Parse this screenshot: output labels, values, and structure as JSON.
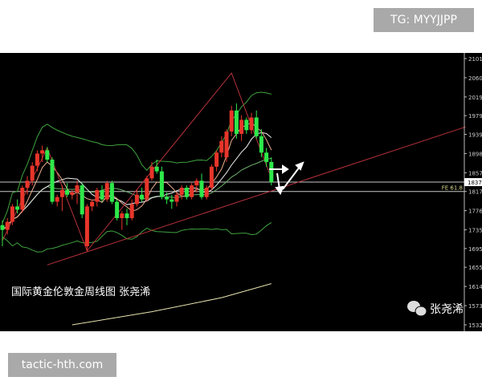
{
  "badges": {
    "tg": "TG: MYYJJPP",
    "site": "tactic-hth.com"
  },
  "chart_data": {
    "type": "candlestick",
    "title": "国际黄金伦敦金周线图 张尧浠",
    "watermark": "张尧浠",
    "watermark_icon": "wechat-icon",
    "ylim": [
      1532,
      2101
    ],
    "y_ticks": [
      "2101",
      "2060",
      "2019",
      "1979",
      "1939",
      "1898",
      "1857",
      "1817",
      "1776",
      "1735",
      "1695",
      "1655",
      "1614",
      "1573",
      "1532"
    ],
    "current_price_label": "1837",
    "level_label": "FE 61.8",
    "levels": [
      1837,
      1817
    ],
    "colors": {
      "up": "#e8352a",
      "down": "#2ee84a",
      "band": "#3fa33f",
      "trend": "#b8323a",
      "ma_long": "#e8e4b0",
      "level": "#c8c8c8",
      "level_label": "#d8d890"
    },
    "candles_ohlc": [
      [
        1745,
        1755,
        1700,
        1735
      ],
      [
        1735,
        1760,
        1725,
        1752
      ],
      [
        1752,
        1790,
        1745,
        1785
      ],
      [
        1785,
        1800,
        1770,
        1778
      ],
      [
        1778,
        1830,
        1772,
        1825
      ],
      [
        1825,
        1850,
        1810,
        1840
      ],
      [
        1840,
        1880,
        1830,
        1872
      ],
      [
        1872,
        1905,
        1860,
        1898
      ],
      [
        1898,
        1915,
        1880,
        1905
      ],
      [
        1905,
        1912,
        1880,
        1885
      ],
      [
        1885,
        1890,
        1790,
        1795
      ],
      [
        1795,
        1810,
        1785,
        1805
      ],
      [
        1805,
        1830,
        1775,
        1820
      ],
      [
        1820,
        1835,
        1805,
        1810
      ],
      [
        1810,
        1820,
        1800,
        1815
      ],
      [
        1815,
        1840,
        1790,
        1830
      ],
      [
        1830,
        1835,
        1760,
        1768
      ],
      [
        1700,
        1790,
        1690,
        1785
      ],
      [
        1785,
        1800,
        1775,
        1795
      ],
      [
        1795,
        1825,
        1785,
        1820
      ],
      [
        1820,
        1830,
        1795,
        1800
      ],
      [
        1800,
        1840,
        1795,
        1835
      ],
      [
        1835,
        1840,
        1790,
        1795
      ],
      [
        1795,
        1800,
        1755,
        1760
      ],
      [
        1760,
        1775,
        1735,
        1770
      ],
      [
        1770,
        1780,
        1745,
        1760
      ],
      [
        1760,
        1800,
        1755,
        1790
      ],
      [
        1790,
        1820,
        1785,
        1810
      ],
      [
        1810,
        1825,
        1795,
        1800
      ],
      [
        1800,
        1850,
        1795,
        1845
      ],
      [
        1845,
        1880,
        1840,
        1870
      ],
      [
        1870,
        1885,
        1855,
        1860
      ],
      [
        1860,
        1870,
        1800,
        1805
      ],
      [
        1805,
        1815,
        1790,
        1800
      ],
      [
        1800,
        1810,
        1780,
        1795
      ],
      [
        1795,
        1815,
        1785,
        1810
      ],
      [
        1810,
        1830,
        1800,
        1825
      ],
      [
        1825,
        1830,
        1800,
        1805
      ],
      [
        1805,
        1835,
        1800,
        1830
      ],
      [
        1830,
        1845,
        1815,
        1840
      ],
      [
        1840,
        1855,
        1800,
        1805
      ],
      [
        1805,
        1830,
        1800,
        1825
      ],
      [
        1825,
        1875,
        1820,
        1870
      ],
      [
        1870,
        1905,
        1860,
        1900
      ],
      [
        1900,
        1935,
        1890,
        1925
      ],
      [
        1890,
        1950,
        1880,
        1945
      ],
      [
        1945,
        2000,
        1935,
        1990
      ],
      [
        1990,
        2005,
        1930,
        1940
      ],
      [
        1940,
        1980,
        1925,
        1970
      ],
      [
        1970,
        1975,
        1940,
        1948
      ],
      [
        1948,
        1985,
        1940,
        1975
      ],
      [
        1975,
        1990,
        1930,
        1935
      ],
      [
        1935,
        1950,
        1890,
        1900
      ],
      [
        1900,
        1910,
        1870,
        1880
      ],
      [
        1880,
        1890,
        1830,
        1837
      ]
    ],
    "zigzag": [
      [
        0,
        1712
      ],
      [
        9,
        1910
      ],
      [
        17,
        1690
      ],
      [
        46,
        2070
      ],
      [
        54,
        1845
      ]
    ],
    "trendline": [
      [
        9,
        1660
      ],
      [
        93,
        1955
      ]
    ],
    "ma_long": [
      [
        14,
        1532
      ],
      [
        30,
        1560
      ],
      [
        44,
        1590
      ],
      [
        54,
        1620
      ]
    ]
  }
}
